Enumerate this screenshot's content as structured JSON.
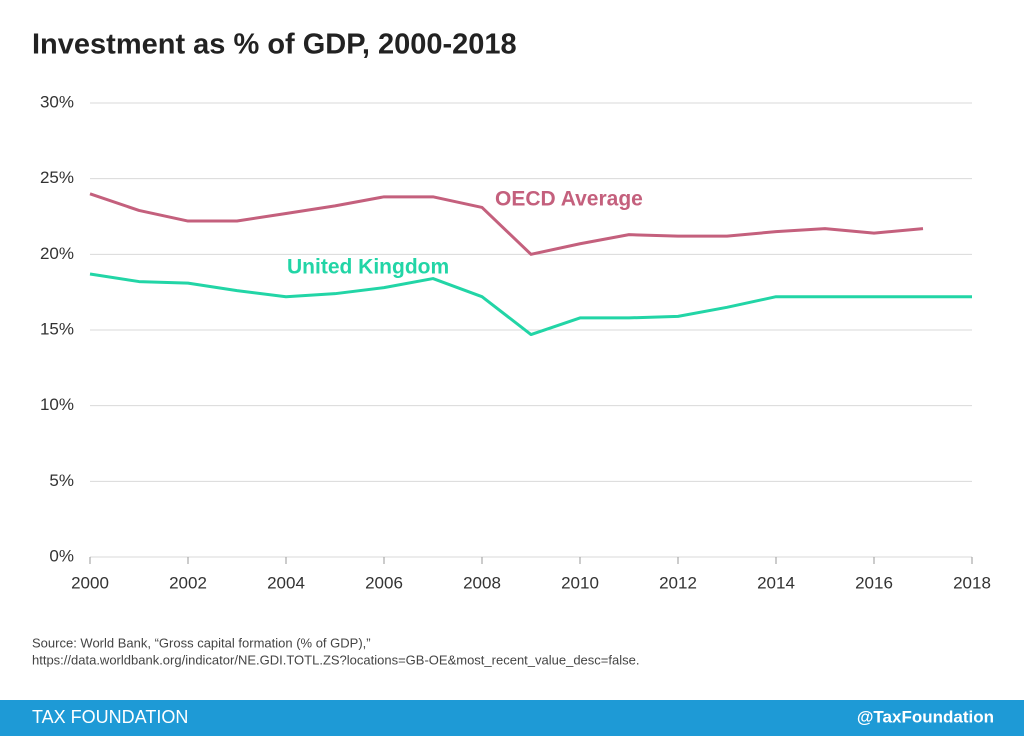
{
  "chart_data": {
    "type": "line",
    "title": "Investment as % of GDP, 2000-2018",
    "x": [
      2000,
      2001,
      2002,
      2003,
      2004,
      2005,
      2006,
      2007,
      2008,
      2009,
      2010,
      2011,
      2012,
      2013,
      2014,
      2015,
      2016,
      2017,
      2018
    ],
    "series": [
      {
        "name": "OECD Average",
        "color": "#c4607d",
        "values": [
          24.0,
          22.9,
          22.2,
          22.2,
          22.7,
          23.2,
          23.8,
          23.8,
          23.1,
          20.0,
          20.7,
          21.3,
          21.2,
          21.2,
          21.5,
          21.7,
          21.4,
          21.7,
          null
        ]
      },
      {
        "name": "United Kingdom",
        "color": "#22d5a6",
        "values": [
          18.7,
          18.2,
          18.1,
          17.6,
          17.2,
          17.4,
          17.8,
          18.4,
          17.2,
          14.7,
          15.8,
          15.8,
          15.9,
          16.5,
          17.2,
          17.2,
          17.2,
          17.2,
          17.2
        ]
      }
    ],
    "xlim": [
      2000,
      2018
    ],
    "xticks": [
      2000,
      2002,
      2004,
      2006,
      2008,
      2010,
      2012,
      2014,
      2016,
      2018
    ],
    "ylim": [
      0,
      30
    ],
    "yticks": [
      {
        "value": 0,
        "label": "0%"
      },
      {
        "value": 5,
        "label": "5%"
      },
      {
        "value": 10,
        "label": "10%"
      },
      {
        "value": 15,
        "label": "15%"
      },
      {
        "value": 20,
        "label": "20%"
      },
      {
        "value": 25,
        "label": "25%"
      },
      {
        "value": 30,
        "label": "30%"
      }
    ],
    "grid": true,
    "source": [
      "Source: World Bank, “Gross capital formation (% of GDP),”",
      "https://data.worldbank.org/indicator/NE.GDI.TOTL.ZS?locations=GB-OE&most_recent_value_desc=false."
    ]
  },
  "footer": {
    "left": "TAX FOUNDATION",
    "right": "@TaxFoundation"
  }
}
